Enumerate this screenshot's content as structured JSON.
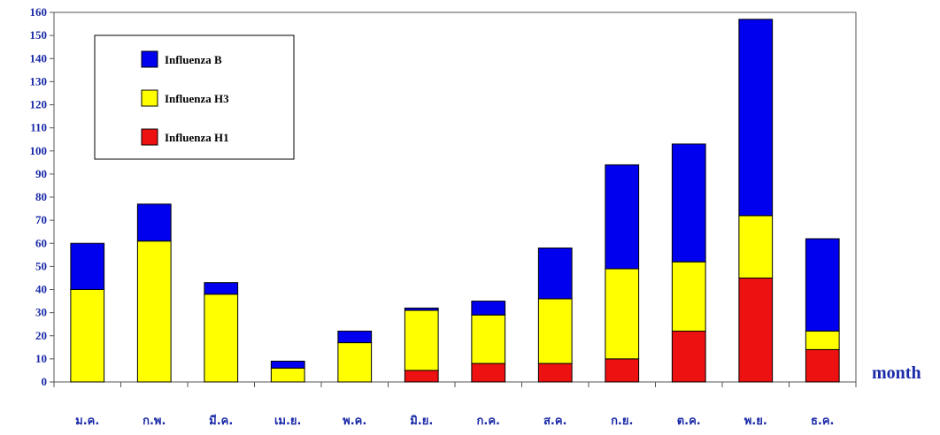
{
  "chart_data": {
    "type": "bar",
    "stacked": true,
    "categories": [
      "ม.ค.",
      "ก.พ.",
      "มี.ค.",
      "เม.ย.",
      "พ.ค.",
      "มิ.ย.",
      "ก.ค.",
      "ส.ค.",
      "ก.ย.",
      "ต.ค.",
      "พ.ย.",
      "ธ.ค."
    ],
    "series": [
      {
        "name": "Influenza H1",
        "color": "#ee1111",
        "values": [
          0,
          0,
          0,
          0,
          0,
          5,
          8,
          8,
          10,
          22,
          45,
          14
        ]
      },
      {
        "name": "Influenza H3",
        "color": "#ffff00",
        "values": [
          40,
          61,
          38,
          6,
          17,
          26,
          21,
          28,
          39,
          30,
          27,
          8
        ]
      },
      {
        "name": "Influenza B",
        "color": "#0000ee",
        "values": [
          20,
          16,
          5,
          3,
          5,
          1,
          6,
          22,
          45,
          51,
          85,
          40
        ]
      }
    ],
    "legend_order": [
      "Influenza B",
      "Influenza H3",
      "Influenza H1"
    ],
    "legend_position": "top-left",
    "ylim": [
      0,
      160
    ],
    "yticks": [
      0,
      10,
      20,
      30,
      40,
      50,
      60,
      70,
      80,
      90,
      100,
      110,
      120,
      130,
      140,
      150,
      160
    ],
    "xlabel": "month",
    "ylabel": "",
    "title": "",
    "grid": false
  }
}
